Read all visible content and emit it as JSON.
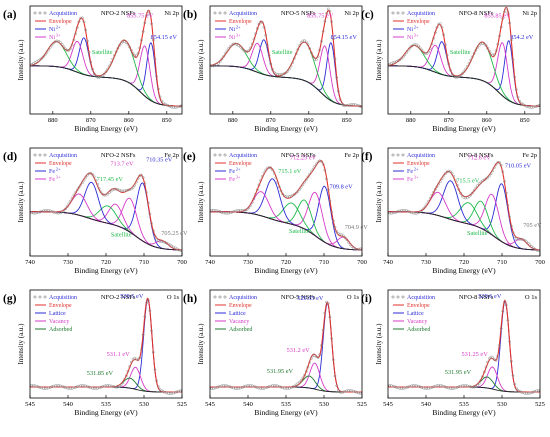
{
  "figure": {
    "ylabel": "Intensity (a.u.)",
    "xlabel": "Binding Energy (eV)"
  },
  "colors": {
    "envelope": "#e0312b",
    "acquisition": "#8c8c8c",
    "background": "#222222",
    "ni2": "#2b2bd6",
    "ni3": "#d63ac8",
    "satellite": "#1fb94a",
    "lattice": "#2b2bd6",
    "vacancy": "#d63ac8",
    "adsorbed": "#1f7a2e",
    "peak_label_blue": "#2b2bd6",
    "peak_label_magenta": "#d63ac8",
    "peak_label_gray": "#777777"
  },
  "chart_data": [
    {
      "panel": "(a)",
      "sample": "NFO-2 NSFs",
      "region": "Ni 2p",
      "type": "line",
      "x_ticks": [
        880,
        870,
        860,
        850
      ],
      "xlim": [
        886,
        846
      ],
      "legend": [
        {
          "label": "Acquisition",
          "style": "scatter"
        },
        {
          "label": "Envelope",
          "style": "envelope"
        },
        {
          "label": "Ni",
          "sup": "2+",
          "style": "ni2"
        },
        {
          "label": "Ni",
          "sup": "3+",
          "style": "ni3"
        }
      ],
      "components": [
        {
          "name": "Ni2+",
          "center": 854.15,
          "height": 0.6,
          "width": 1.1,
          "color": "ni2"
        },
        {
          "name": "Ni3+",
          "center": 855.75,
          "height": 0.52,
          "width": 1.3,
          "color": "ni3"
        },
        {
          "name": "Satellite",
          "center": 861.0,
          "height": 0.42,
          "width": 2.5,
          "color": "satellite"
        },
        {
          "name": "Ni2+ 2p1/2",
          "center": 871.8,
          "height": 0.38,
          "width": 1.2,
          "color": "ni2"
        },
        {
          "name": "Ni3+ 2p1/2",
          "center": 873.5,
          "height": 0.32,
          "width": 1.4,
          "color": "ni3"
        },
        {
          "name": "Satellite 2p1/2",
          "center": 879.0,
          "height": 0.26,
          "width": 2.5,
          "color": "satellite"
        }
      ],
      "peak_labels": [
        {
          "text": "855.75 eV",
          "x": 857.0,
          "y": 1.0,
          "color": "peak_label_magenta"
        },
        {
          "text": "854.15 eV",
          "x": 850.8,
          "y": 0.78,
          "color": "peak_label_blue"
        },
        {
          "text": "Satellite",
          "x": 867.0,
          "y": 0.62,
          "color": "satellite"
        }
      ]
    },
    {
      "panel": "(b)",
      "sample": "NFO-5 NSFs",
      "region": "Ni 2p",
      "type": "line",
      "x_ticks": [
        880,
        870,
        860,
        850
      ],
      "xlim": [
        886,
        846
      ],
      "legend": [
        {
          "label": "Acquisition",
          "style": "scatter"
        },
        {
          "label": "Envelope",
          "style": "envelope"
        },
        {
          "label": "Ni",
          "sup": "2+",
          "style": "ni2"
        },
        {
          "label": "Ni",
          "sup": "3+",
          "style": "ni3"
        }
      ],
      "components": [
        {
          "name": "Ni2+",
          "center": 854.15,
          "height": 0.6,
          "width": 1.1,
          "color": "ni2"
        },
        {
          "name": "Ni3+",
          "center": 855.75,
          "height": 0.52,
          "width": 1.3,
          "color": "ni3"
        },
        {
          "name": "Satellite",
          "center": 861.0,
          "height": 0.4,
          "width": 2.5,
          "color": "satellite"
        },
        {
          "name": "Ni2+ 2p1/2",
          "center": 871.8,
          "height": 0.36,
          "width": 1.2,
          "color": "ni2"
        },
        {
          "name": "Ni3+ 2p1/2",
          "center": 873.5,
          "height": 0.3,
          "width": 1.4,
          "color": "ni3"
        },
        {
          "name": "Satellite 2p1/2",
          "center": 879.0,
          "height": 0.24,
          "width": 2.5,
          "color": "satellite"
        }
      ],
      "peak_labels": [
        {
          "text": "855.75 eV",
          "x": 857.0,
          "y": 1.0,
          "color": "peak_label_magenta"
        },
        {
          "text": "854.15 eV",
          "x": 850.8,
          "y": 0.78,
          "color": "peak_label_blue"
        },
        {
          "text": "Satellite",
          "x": 867.0,
          "y": 0.62,
          "color": "satellite"
        }
      ]
    },
    {
      "panel": "(c)",
      "sample": "NFO-8 NSFs",
      "region": "Ni 2p",
      "type": "line",
      "x_ticks": [
        880,
        870,
        860,
        850
      ],
      "xlim": [
        886,
        846
      ],
      "legend": [
        {
          "label": "Acquisition",
          "style": "scatter"
        },
        {
          "label": "Envelope",
          "style": "envelope"
        },
        {
          "label": "Ni",
          "sup": "2+",
          "style": "ni2"
        },
        {
          "label": "Ni",
          "sup": "3+",
          "style": "ni3"
        }
      ],
      "components": [
        {
          "name": "Ni2+",
          "center": 854.2,
          "height": 0.62,
          "width": 1.1,
          "color": "ni2"
        },
        {
          "name": "Ni3+",
          "center": 855.85,
          "height": 0.55,
          "width": 1.3,
          "color": "ni3"
        },
        {
          "name": "Satellite",
          "center": 861.0,
          "height": 0.4,
          "width": 2.5,
          "color": "satellite"
        },
        {
          "name": "Ni2+ 2p1/2",
          "center": 871.8,
          "height": 0.34,
          "width": 1.2,
          "color": "ni2"
        },
        {
          "name": "Ni3+ 2p1/2",
          "center": 873.5,
          "height": 0.28,
          "width": 1.4,
          "color": "ni3"
        },
        {
          "name": "Satellite 2p1/2",
          "center": 879.0,
          "height": 0.22,
          "width": 2.5,
          "color": "satellite"
        }
      ],
      "peak_labels": [
        {
          "text": "855.85 eV",
          "x": 857.2,
          "y": 1.0,
          "color": "peak_label_magenta"
        },
        {
          "text": "854.2 eV",
          "x": 850.8,
          "y": 0.78,
          "color": "peak_label_blue"
        },
        {
          "text": "Satellite",
          "x": 867.0,
          "y": 0.62,
          "color": "satellite"
        }
      ]
    },
    {
      "panel": "(d)",
      "sample": "NFO-2 NSFs",
      "region": "Fe 2p",
      "type": "line",
      "x_ticks": [
        740,
        730,
        720,
        710,
        700
      ],
      "xlim": [
        740,
        700
      ],
      "legend": [
        {
          "label": "Acquisition",
          "style": "scatter"
        },
        {
          "label": "Envelope",
          "style": "envelope"
        },
        {
          "label": "Fe",
          "sup": "2+",
          "style": "ni2"
        },
        {
          "label": "Fe",
          "sup": "3+",
          "style": "ni3"
        }
      ],
      "components": [
        {
          "name": "Fe2+",
          "center": 710.35,
          "height": 0.6,
          "width": 1.6,
          "color": "ni2"
        },
        {
          "name": "Fe3+",
          "center": 713.7,
          "height": 0.35,
          "width": 1.8,
          "color": "ni3"
        },
        {
          "name": "Fe3+ b",
          "center": 717.45,
          "height": 0.22,
          "width": 1.8,
          "color": "ni3"
        },
        {
          "name": "Satellite",
          "center": 719.5,
          "height": 0.18,
          "width": 2.2,
          "color": "satellite"
        },
        {
          "name": "Fe2+ 2p1/2",
          "center": 723.8,
          "height": 0.38,
          "width": 1.8,
          "color": "ni2"
        },
        {
          "name": "Fe3+ 2p1/2",
          "center": 727.0,
          "height": 0.22,
          "width": 2.0,
          "color": "ni3"
        },
        {
          "name": "low",
          "center": 705.25,
          "height": 0.08,
          "width": 1.6,
          "color": "ni3"
        }
      ],
      "peak_labels": [
        {
          "text": "713.7 eV",
          "x": 715.8,
          "y": 0.94,
          "color": "peak_label_magenta"
        },
        {
          "text": "710.35 eV",
          "x": 706.0,
          "y": 0.98,
          "color": "peak_label_blue"
        },
        {
          "text": "717.45 eV",
          "x": 719.0,
          "y": 0.78,
          "color": "satellite"
        },
        {
          "text": "705.25 eV",
          "x": 702.0,
          "y": 0.22,
          "color": "peak_label_gray"
        },
        {
          "text": "Satellite",
          "x": 716.0,
          "y": 0.2,
          "color": "satellite"
        }
      ]
    },
    {
      "panel": "(e)",
      "sample": "NFO-5 NSFs",
      "region": "Fe 2p",
      "type": "line",
      "x_ticks": [
        740,
        730,
        720,
        710,
        700
      ],
      "xlim": [
        740,
        700
      ],
      "legend": [
        {
          "label": "Acquisition",
          "style": "scatter"
        },
        {
          "label": "Envelope",
          "style": "envelope"
        },
        {
          "label": "Fe",
          "sup": "2+",
          "style": "ni2"
        },
        {
          "label": "Fe",
          "sup": "3+",
          "style": "ni3"
        }
      ],
      "components": [
        {
          "name": "Fe2+",
          "center": 709.8,
          "height": 0.58,
          "width": 1.6,
          "color": "ni2"
        },
        {
          "name": "Fe3+",
          "center": 712.25,
          "height": 0.45,
          "width": 1.8,
          "color": "ni3"
        },
        {
          "name": "Fe3+ b",
          "center": 715.1,
          "height": 0.3,
          "width": 1.8,
          "color": "satellite"
        },
        {
          "name": "Satellite",
          "center": 718.5,
          "height": 0.22,
          "width": 2.2,
          "color": "satellite"
        },
        {
          "name": "Fe2+ 2p1/2",
          "center": 723.5,
          "height": 0.42,
          "width": 1.9,
          "color": "ni2"
        },
        {
          "name": "Fe3+ 2p1/2",
          "center": 726.5,
          "height": 0.25,
          "width": 2.0,
          "color": "ni3"
        },
        {
          "name": "low",
          "center": 704.9,
          "height": 0.12,
          "width": 1.6,
          "color": "ni3"
        }
      ],
      "peak_labels": [
        {
          "text": "712.25 eV",
          "x": 715.5,
          "y": 1.0,
          "color": "peak_label_magenta"
        },
        {
          "text": "715.1 eV",
          "x": 719.0,
          "y": 0.86,
          "color": "satellite"
        },
        {
          "text": "709.8 eV",
          "x": 705.5,
          "y": 0.7,
          "color": "peak_label_blue"
        },
        {
          "text": "704.9 eV",
          "x": 701.5,
          "y": 0.28,
          "color": "peak_label_gray"
        },
        {
          "text": "Satellite",
          "x": 716.5,
          "y": 0.24,
          "color": "satellite"
        }
      ]
    },
    {
      "panel": "(f)",
      "sample": "NFO-8 NSFs",
      "region": "Fe 2p",
      "type": "line",
      "x_ticks": [
        740,
        730,
        720,
        710,
        700
      ],
      "xlim": [
        740,
        700
      ],
      "legend": [
        {
          "label": "Acquisition",
          "style": "scatter"
        },
        {
          "label": "Envelope",
          "style": "envelope"
        },
        {
          "label": "Fe",
          "sup": "2+",
          "style": "ni2"
        },
        {
          "label": "Fe",
          "sup": "3+",
          "style": "ni3"
        }
      ],
      "components": [
        {
          "name": "Fe2+",
          "center": 710.05,
          "height": 0.6,
          "width": 1.6,
          "color": "ni2"
        },
        {
          "name": "Fe3+",
          "center": 712.6,
          "height": 0.42,
          "width": 1.8,
          "color": "ni3"
        },
        {
          "name": "Fe3+ b",
          "center": 715.5,
          "height": 0.28,
          "width": 1.8,
          "color": "satellite"
        },
        {
          "name": "Satellite",
          "center": 718.8,
          "height": 0.22,
          "width": 2.2,
          "color": "satellite"
        },
        {
          "name": "Fe2+ 2p1/2",
          "center": 723.5,
          "height": 0.4,
          "width": 1.9,
          "color": "ni2"
        },
        {
          "name": "Fe3+ 2p1/2",
          "center": 726.8,
          "height": 0.24,
          "width": 2.0,
          "color": "ni3"
        },
        {
          "name": "low",
          "center": 705.0,
          "height": 0.1,
          "width": 1.6,
          "color": "ni3"
        }
      ],
      "peak_labels": [
        {
          "text": "712.6 eV",
          "x": 716.0,
          "y": 1.0,
          "color": "peak_label_magenta"
        },
        {
          "text": "710.05 eV",
          "x": 705.8,
          "y": 0.92,
          "color": "peak_label_blue"
        },
        {
          "text": "715.5 eV",
          "x": 719.0,
          "y": 0.76,
          "color": "satellite"
        },
        {
          "text": "705 eV",
          "x": 702.0,
          "y": 0.3,
          "color": "peak_label_gray"
        },
        {
          "text": "Satellite",
          "x": 716.5,
          "y": 0.22,
          "color": "satellite"
        }
      ]
    },
    {
      "panel": "(g)",
      "sample": "NFO-2 NSFs",
      "region": "O 1s",
      "type": "line",
      "x_ticks": [
        545,
        540,
        535,
        530,
        525
      ],
      "xlim": [
        545,
        525
      ],
      "legend": [
        {
          "label": "Acquisition",
          "style": "scatter"
        },
        {
          "label": "Envelope",
          "style": "envelope"
        },
        {
          "label": "Lattice",
          "style": "lattice"
        },
        {
          "label": "Vacancy",
          "style": "vacancy"
        },
        {
          "label": "Adsorbed",
          "style": "adsorbed"
        }
      ],
      "components": [
        {
          "name": "Lattice",
          "center": 529.5,
          "height": 0.92,
          "width": 0.55,
          "color": "lattice"
        },
        {
          "name": "Vacancy",
          "center": 531.1,
          "height": 0.22,
          "width": 0.65,
          "color": "vacancy"
        },
        {
          "name": "Adsorbed",
          "center": 531.85,
          "height": 0.1,
          "width": 0.8,
          "color": "adsorbed"
        }
      ],
      "peak_labels": [
        {
          "text": "529.5 eV",
          "x": 531.6,
          "y": 1.0,
          "color": "peak_label_blue"
        },
        {
          "text": "531.1 eV",
          "x": 533.4,
          "y": 0.42,
          "color": "peak_label_magenta"
        },
        {
          "text": "531.85 eV",
          "x": 535.8,
          "y": 0.23,
          "color": "adsorbed"
        }
      ]
    },
    {
      "panel": "(h)",
      "sample": "NFO-5 NSFs",
      "region": "O 1s",
      "type": "line",
      "x_ticks": [
        545,
        540,
        535,
        530,
        525
      ],
      "xlim": [
        545,
        525
      ],
      "legend": [
        {
          "label": "Acquisition",
          "style": "scatter"
        },
        {
          "label": "Envelope",
          "style": "envelope"
        },
        {
          "label": "Lattice",
          "style": "lattice"
        },
        {
          "label": "Vacancy",
          "style": "vacancy"
        },
        {
          "label": "Adsorbed",
          "style": "adsorbed"
        }
      ],
      "components": [
        {
          "name": "Lattice",
          "center": 529.55,
          "height": 0.88,
          "width": 0.55,
          "color": "lattice"
        },
        {
          "name": "Vacancy",
          "center": 531.2,
          "height": 0.26,
          "width": 0.65,
          "color": "vacancy"
        },
        {
          "name": "Adsorbed",
          "center": 531.95,
          "height": 0.12,
          "width": 0.8,
          "color": "adsorbed"
        }
      ],
      "peak_labels": [
        {
          "text": "529.55 eV",
          "x": 531.8,
          "y": 0.98,
          "color": "peak_label_blue"
        },
        {
          "text": "531.2 eV",
          "x": 533.4,
          "y": 0.46,
          "color": "peak_label_magenta"
        },
        {
          "text": "531.95 eV",
          "x": 535.8,
          "y": 0.25,
          "color": "adsorbed"
        }
      ]
    },
    {
      "panel": "(i)",
      "sample": "NFO-8 NSFs",
      "region": "O 1s",
      "type": "line",
      "x_ticks": [
        545,
        540,
        535,
        530,
        525
      ],
      "xlim": [
        545,
        525
      ],
      "legend": [
        {
          "label": "Acquisition",
          "style": "scatter"
        },
        {
          "label": "Envelope",
          "style": "envelope"
        },
        {
          "label": "Lattice",
          "style": "lattice"
        },
        {
          "label": "Vacancy",
          "style": "vacancy"
        },
        {
          "label": "Adsorbed",
          "style": "adsorbed"
        }
      ],
      "components": [
        {
          "name": "Lattice",
          "center": 529.6,
          "height": 0.9,
          "width": 0.55,
          "color": "lattice"
        },
        {
          "name": "Vacancy",
          "center": 531.25,
          "height": 0.22,
          "width": 0.65,
          "color": "vacancy"
        },
        {
          "name": "Adsorbed",
          "center": 531.95,
          "height": 0.11,
          "width": 0.8,
          "color": "adsorbed"
        }
      ],
      "peak_labels": [
        {
          "text": "529.6 eV",
          "x": 531.6,
          "y": 1.0,
          "color": "peak_label_blue"
        },
        {
          "text": "531.25 eV",
          "x": 533.6,
          "y": 0.42,
          "color": "peak_label_magenta"
        },
        {
          "text": "531.95 eV",
          "x": 535.8,
          "y": 0.24,
          "color": "adsorbed"
        }
      ]
    }
  ]
}
